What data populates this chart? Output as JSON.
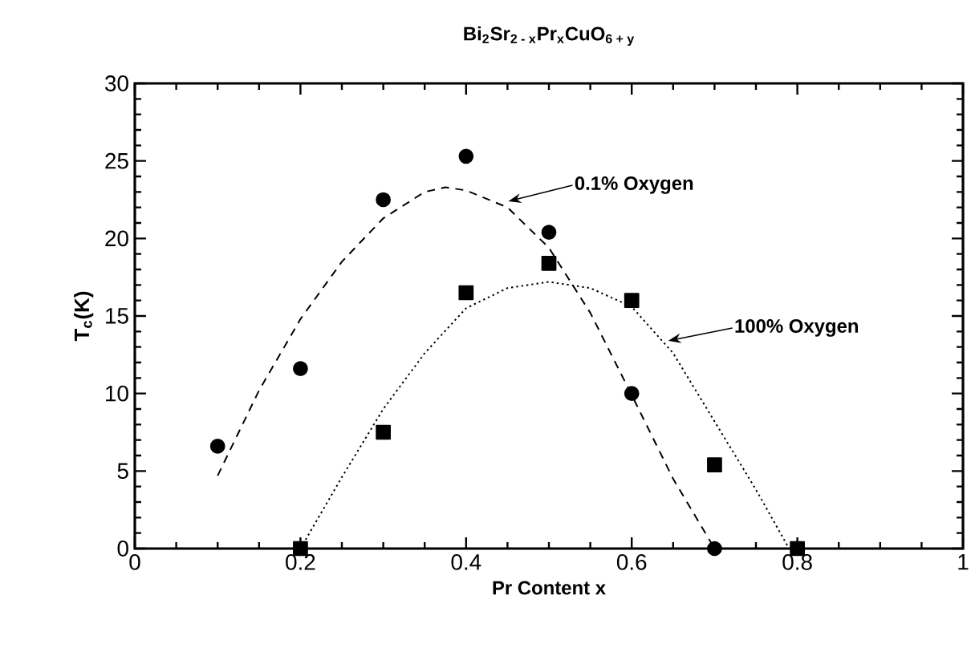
{
  "chart_data": {
    "type": "scatter",
    "title": "Bi$_{2}$Sr$_{2 - x}$Pr$_{x}$CuO$_{6 + y}$",
    "xlabel": "Pr  Content  x",
    "ylabel": "T$_{c}$(K)",
    "xlim": [
      0,
      1
    ],
    "xticks": [
      0,
      0.2,
      0.4,
      0.6,
      0.8,
      1
    ],
    "ylim": [
      0,
      30
    ],
    "yticks": [
      0,
      5,
      10,
      15,
      20,
      25,
      30
    ],
    "grid": false,
    "series": [
      {
        "marker": "circle",
        "color": "#000000",
        "x": [
          0.1,
          0.2,
          0.3,
          0.4,
          0.5,
          0.6,
          0.7
        ],
        "values": [
          6.6,
          11.6,
          22.5,
          25.3,
          20.4,
          10.0,
          0
        ]
      },
      {
        "marker": "square",
        "color": "#000000",
        "x": [
          0.2,
          0.3,
          0.4,
          0.5,
          0.6,
          0.7,
          0.8
        ],
        "values": [
          0,
          7.5,
          16.5,
          18.4,
          16.0,
          5.4,
          0
        ]
      },
      {
        "type": "line",
        "marker": "none",
        "line_style": "dashed",
        "color": "#000000",
        "x": [
          0.1,
          0.15,
          0.2,
          0.25,
          0.3,
          0.35,
          0.375,
          0.4,
          0.45,
          0.5,
          0.55,
          0.6,
          0.65,
          0.7
        ],
        "values": [
          4.7,
          10.2,
          14.8,
          18.5,
          21.3,
          23.0,
          23.3,
          23.1,
          22.0,
          19.4,
          15.2,
          9.9,
          4.5,
          0
        ]
      },
      {
        "type": "line",
        "marker": "none",
        "line_style": "dotted",
        "color": "#000000",
        "x": [
          0.2,
          0.25,
          0.3,
          0.35,
          0.4,
          0.45,
          0.5,
          0.55,
          0.6,
          0.65,
          0.7,
          0.75,
          0.79
        ],
        "values": [
          0,
          4.6,
          9.0,
          12.6,
          15.5,
          16.8,
          17.2,
          16.8,
          15.6,
          12.6,
          8.2,
          3.8,
          0
        ]
      }
    ],
    "annotations": [
      {
        "text": "0.1%  Oxygen",
        "x": 0.451,
        "y": 22.4
      },
      {
        "text": "100%  Oxygen",
        "x": 0.644,
        "y": 13.4
      }
    ]
  }
}
